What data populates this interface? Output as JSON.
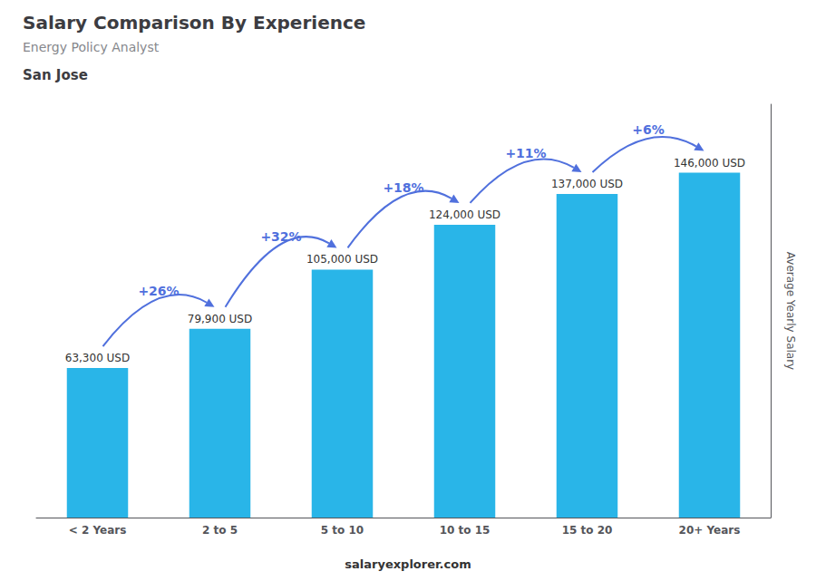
{
  "chart_data": {
    "type": "bar",
    "title": "Salary Comparison By Experience",
    "subtitle": "Energy Policy Analyst",
    "city": "San Jose",
    "ylabel": "Average Yearly Salary",
    "footer": "salaryexplorer.com",
    "categories": [
      "< 2 Years",
      "2 to 5",
      "5 to 10",
      "10 to 15",
      "15 to 20",
      "20+ Years"
    ],
    "values": [
      63300,
      79900,
      105000,
      124000,
      137000,
      146000
    ],
    "value_labels": [
      "63,300 USD",
      "79,900 USD",
      "105,000 USD",
      "124,000 USD",
      "137,000 USD",
      "146,000 USD"
    ],
    "data_labels": true,
    "color": "#29b5e8",
    "ylim": [
      0,
      175000
    ],
    "grid": false,
    "tick_labels": "x",
    "change_labels": [
      "+26%",
      "+32%",
      "+18%",
      "+11%",
      "+6%"
    ]
  }
}
